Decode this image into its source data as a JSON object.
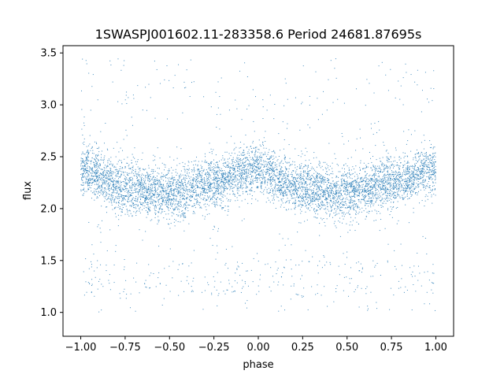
{
  "chart_data": {
    "type": "scatter",
    "title": "1SWASPJ001602.11-283358.6 Period 24681.87695s",
    "xlabel": "phase",
    "ylabel": "flux",
    "xlim": [
      -1.1,
      1.1
    ],
    "ylim": [
      0.77,
      3.57
    ],
    "xticks": [
      -1.0,
      -0.75,
      -0.5,
      -0.25,
      0.0,
      0.25,
      0.5,
      0.75,
      1.0
    ],
    "xtick_labels": [
      "−1.00",
      "−0.75",
      "−0.50",
      "−0.25",
      "0.00",
      "0.25",
      "0.50",
      "0.75",
      "1.00"
    ],
    "yticks": [
      1.0,
      1.5,
      2.0,
      2.5,
      3.0,
      3.5
    ],
    "ytick_labels": [
      "1.0",
      "1.5",
      "2.0",
      "2.5",
      "3.0",
      "3.5"
    ],
    "grid": false,
    "legend": "none",
    "marker_color": "#1f77b4",
    "phase_range": [
      -1.0,
      1.0
    ],
    "light_curve": {
      "phase": [
        -1.0,
        -0.75,
        -0.5,
        -0.25,
        0.0,
        0.25,
        0.5,
        0.75,
        1.0
      ],
      "median_flux": [
        2.38,
        2.2,
        2.14,
        2.25,
        2.38,
        2.2,
        2.14,
        2.25,
        2.38
      ]
    },
    "scatter_spread": 0.12,
    "outliers_flux_range": [
      0.9,
      3.45
    ]
  }
}
